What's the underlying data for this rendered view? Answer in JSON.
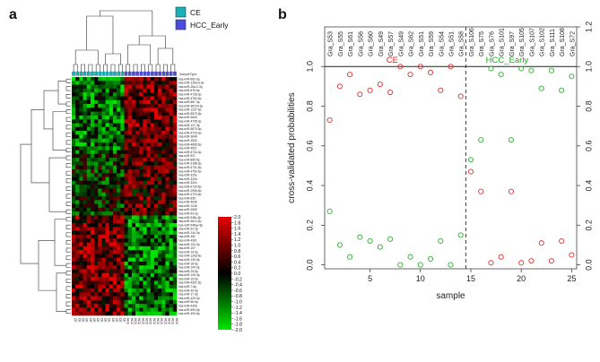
{
  "panels": {
    "a": "a",
    "b": "b"
  },
  "heatmap": {
    "legend": [
      {
        "label": "CE",
        "color": "#1ab0b8"
      },
      {
        "label": "HCC_Early",
        "color": "#4b4bdc"
      }
    ],
    "sample_type_label": "SampleType",
    "n_rows": 62,
    "n_cols": 28,
    "n_ce": 14,
    "row_labels": [
      "hsa-miR-663-3p",
      "hsa-miR-125a-3-3p",
      "hsa-miR-26a-2-3p",
      "hsa-miR-676-5p",
      "hsa-miR-4728-3p",
      "hsa-miR-4760-5p",
      "hsa-miR-887-3p",
      "hsa-miR-3622b-5p",
      "hsa-miR-1237-5p",
      "hsa-miR-6879-5p",
      "hsa-miR-4634",
      "hsa-miR-4745-3p",
      "hsa-miR-127-3p",
      "hsa-miR-6875-5p",
      "hsa-miR-4733-3p",
      "hsa-miR-3648",
      "hsa-miR-4530",
      "hsa-miR-4665-5p",
      "hsa-miR-4521",
      "hsa-miR-6734-3p",
      "hsa-miR-937",
      "hsa-miR-885-5p",
      "hsa-miR-3188-3p",
      "hsa-miR-6731-5p",
      "hsa-miR-4750-5p",
      "hsa-miR-320e",
      "hsa-miR-320a",
      "hsa-miR-320c",
      "hsa-miR-6733-5p",
      "hsa-miR-1908-5p",
      "hsa-miR-4723-5p",
      "hsa-miR-635",
      "hsa-miR-4635",
      "hsa-miR-1246",
      "hsa-miR-4505",
      "hsa-miR-93-3p",
      "hsa-miR-548x-5p",
      "hsa-miR-3613-5p",
      "hsa-miR-548av-5p",
      "hsa-miR-32-3p",
      "hsa-miR-144-3p",
      "hsa-miR-451",
      "hsa-miR-4301",
      "hsa-miR-103-3p",
      "hsa-miR-107",
      "hsa-miR-19-5p",
      "hsa-miR-126a-5p",
      "hsa-miR-139-5p",
      "hsa-miR-16-5p",
      "hsa-miR-140-3p",
      "hsa-miR-29-5p",
      "hsa-miR-145-3p",
      "hsa-miR-15-5p",
      "hsa-miR-4301-5p",
      "hsa-miR-7-5p",
      "hsa-miR-30-3p",
      "hsa-miR-17-3p",
      "hsa-miR-425-3p",
      "hsa-miR-96-5p",
      "hsa-miR-4306",
      "hsa-miR-590-5p",
      "hsa-miR-494-5p"
    ],
    "col_labels": [
      "CE",
      "CE",
      "CE",
      "CE",
      "CE",
      "CE",
      "CE",
      "CE",
      "CE",
      "CE",
      "CE",
      "CE",
      "CE",
      "CE",
      "HCC",
      "HCC",
      "HCC",
      "HCC",
      "HCC",
      "HCC",
      "HCC",
      "HCC",
      "HCC",
      "HCC",
      "HCC",
      "HCC",
      "HCC",
      "HCC"
    ],
    "colorbar": {
      "ticks": [
        "2.0",
        "1.8",
        "1.6",
        "1.4",
        "1.2",
        "1.0",
        "0.8",
        "0.6",
        "0.4",
        "0.2",
        "0.0",
        "-0.2",
        "-0.4",
        "-0.6",
        "-0.8",
        "-1.0",
        "-1.2",
        "-1.4",
        "-1.6",
        "-1.8",
        "-2.0"
      ],
      "colors": {
        "high": "#e60000",
        "mid": "#000000",
        "low": "#00e600"
      }
    }
  },
  "chart_data": {
    "type": "scatter",
    "xlabel": "sample",
    "ylabel": "cross-validated probabilities",
    "xlim": [
      0.5,
      25.5
    ],
    "ylim": [
      -0.02,
      1.2
    ],
    "x_ticks": [
      "5",
      "10",
      "15",
      "20",
      "25"
    ],
    "y_ticks": [
      "0.0",
      "0.2",
      "0.4",
      "0.6",
      "0.8",
      "1.0"
    ],
    "right_y_ticks": [
      "0.0",
      "0.2",
      "0.4",
      "0.6",
      "0.8",
      "1.0",
      "1.2"
    ],
    "reference_line_y": 1.0,
    "divider_x": 14.5,
    "group_labels": [
      {
        "text": "CE",
        "x": 7.2,
        "y": 1.02,
        "color": "#e02020"
      },
      {
        "text": "HCC_Early",
        "x": 18.6,
        "y": 1.02,
        "color": "#22aa22"
      }
    ],
    "sample_labels": [
      "Gra_S53",
      "Gra_S55",
      "Gra_S61",
      "Gra_S56",
      "Gra_S60",
      "Gra_S49",
      "Gra_S57",
      "Gra_S49",
      "Gra_S62",
      "Gra_S51",
      "Gra_S59",
      "Gra_S54",
      "Gra_S51",
      "Gra_S58",
      "Gra_S106",
      "Gra_S75",
      "Gra_S76",
      "Gra_S101",
      "Gra_S97",
      "Gra_S105",
      "Gra_S107",
      "Gra_S102",
      "Gra_S111",
      "Gra_S108",
      "Gra_S72"
    ],
    "series": [
      {
        "color": "#e03030",
        "x": [
          1,
          2,
          3,
          4,
          5,
          6,
          7,
          8,
          9,
          10,
          11,
          12,
          13,
          14,
          15,
          16,
          17,
          18,
          19,
          20,
          21,
          22,
          23,
          24,
          25
        ],
        "values": [
          0.73,
          0.9,
          0.96,
          0.86,
          0.88,
          0.91,
          0.87,
          1.0,
          0.96,
          1.0,
          0.97,
          0.88,
          1.0,
          0.85,
          0.47,
          0.37,
          0.01,
          0.04,
          0.37,
          0.01,
          0.02,
          0.11,
          0.02,
          0.12,
          0.05
        ]
      },
      {
        "color": "#30b030",
        "x": [
          1,
          2,
          3,
          4,
          5,
          6,
          7,
          8,
          9,
          10,
          11,
          12,
          13,
          14,
          15,
          16,
          17,
          18,
          19,
          20,
          21,
          22,
          23,
          24,
          25
        ],
        "values": [
          0.27,
          0.1,
          0.04,
          0.14,
          0.12,
          0.09,
          0.13,
          0.0,
          0.04,
          0.0,
          0.03,
          0.12,
          0.0,
          0.15,
          0.53,
          0.63,
          0.99,
          0.96,
          0.63,
          0.99,
          0.98,
          0.89,
          0.98,
          0.88,
          0.95
        ]
      }
    ]
  }
}
